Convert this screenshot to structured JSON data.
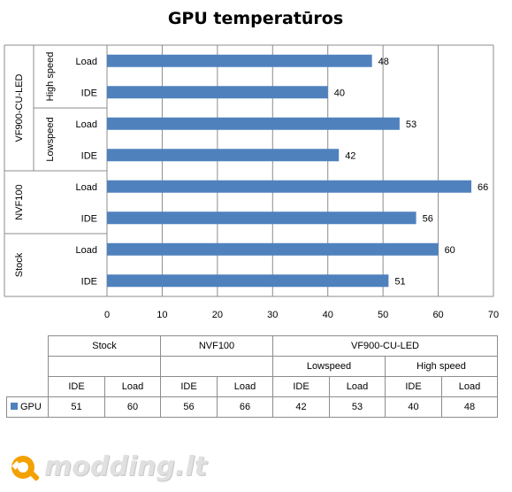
{
  "chart_data": {
    "type": "bar",
    "orientation": "horizontal",
    "title": "GPU temperatūros",
    "series": [
      {
        "name": "GPU",
        "color": "#4f81bd"
      }
    ],
    "groups": [
      {
        "name": "Stock",
        "rows": [
          {
            "label": "IDE",
            "value": 51
          },
          {
            "label": "Load",
            "value": 60
          }
        ]
      },
      {
        "name": "NVF100",
        "rows": [
          {
            "label": "IDE",
            "value": 56
          },
          {
            "label": "Load",
            "value": 66
          }
        ]
      },
      {
        "name": "VF900-CU-LED",
        "subgroups": [
          {
            "name": "Lowspeed",
            "rows": [
              {
                "label": "IDE",
                "value": 42
              },
              {
                "label": "Load",
                "value": 53
              }
            ]
          },
          {
            "name": "High speed",
            "rows": [
              {
                "label": "IDE",
                "value": 40
              },
              {
                "label": "Load",
                "value": 48
              }
            ]
          }
        ]
      }
    ],
    "xlim": [
      0,
      70
    ],
    "xticks": [
      0,
      10,
      20,
      30,
      40,
      50,
      60,
      70
    ],
    "grid": true
  },
  "table": {
    "top": [
      "Stock",
      "NVF100",
      "VF900-CU-LED"
    ],
    "sub": [
      "Lowspeed",
      "High speed"
    ],
    "cols": [
      "IDE",
      "Load",
      "IDE",
      "Load",
      "IDE",
      "Load",
      "IDE",
      "Load"
    ],
    "row_label": "GPU",
    "values": [
      "51",
      "60",
      "56",
      "66",
      "42",
      "53",
      "40",
      "48"
    ]
  },
  "logo": {
    "text": "modding.lt"
  }
}
